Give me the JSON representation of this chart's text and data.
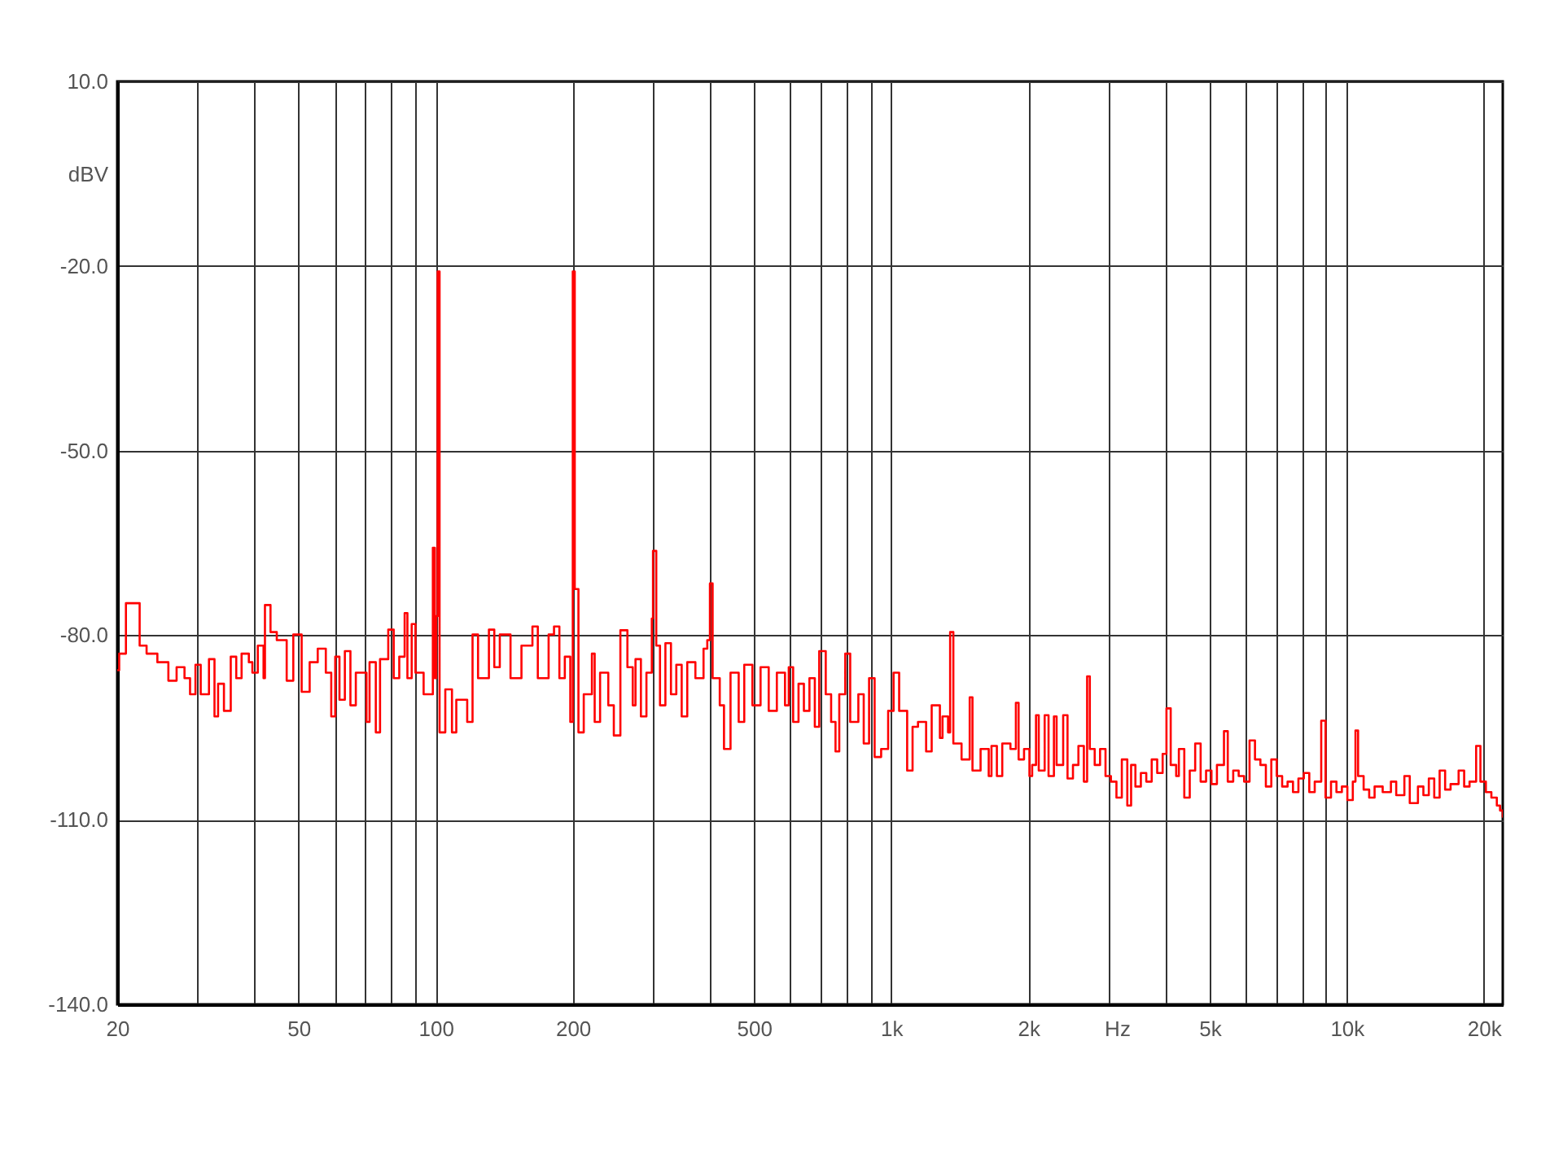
{
  "chart_data": {
    "type": "step",
    "xlabel": "Hz",
    "ylabel": "dBV",
    "log": "x",
    "grid": true,
    "xlim": [
      20,
      22000
    ],
    "ylim": [
      -140,
      10
    ],
    "xticks": [
      20,
      {
        "value": 30,
        "label": null
      },
      {
        "value": 40,
        "label": null
      },
      50,
      {
        "value": 60,
        "label": null
      },
      {
        "value": 70,
        "label": null
      },
      {
        "value": 80,
        "label": null
      },
      {
        "value": 90,
        "label": null
      },
      100,
      200,
      {
        "value": 300,
        "label": null
      },
      {
        "value": 400,
        "label": null
      },
      500,
      {
        "value": 600,
        "label": null
      },
      {
        "value": 700,
        "label": null
      },
      {
        "value": 800,
        "label": null
      },
      {
        "value": 900,
        "label": null
      },
      {
        "value": 1000,
        "label": "1k"
      },
      {
        "value": 2000,
        "label": "2k"
      },
      {
        "value": 3000,
        "label": null
      },
      {
        "value": 4000,
        "label": null
      },
      {
        "value": 5000,
        "label": "5k"
      },
      {
        "value": 6000,
        "label": null
      },
      {
        "value": 7000,
        "label": null
      },
      {
        "value": 8000,
        "label": null
      },
      {
        "value": 9000,
        "label": null
      },
      {
        "value": 10000,
        "label": "10k"
      },
      {
        "value": 20000,
        "label": "20k"
      }
    ],
    "yticks": [
      {
        "value": 10,
        "label": "10.0"
      },
      {
        "value": -20,
        "label": "-20.0"
      },
      {
        "value": -50,
        "label": "-50.0"
      },
      {
        "value": -80,
        "label": "-80.0"
      },
      {
        "value": -110,
        "label": "-110.0"
      },
      {
        "value": -140,
        "label": "-140.0"
      }
    ],
    "x": [
      20,
      20.2,
      20.9,
      22.4,
      23.2,
      24.5,
      25.9,
      27.0,
      28.1,
      28.9,
      29.7,
      30.5,
      31.8,
      32.7,
      33.3,
      34.3,
      35.5,
      36.5,
      37.5,
      38.9,
      39.6,
      40.7,
      41.9,
      42.2,
      43.4,
      44.8,
      47.1,
      48.7,
      50.8,
      52.9,
      55.1,
      57.4,
      59.0,
      60.2,
      61.5,
      63.2,
      65.0,
      66.8,
      70.5,
      71.6,
      73.9,
      75.5,
      78.7,
      80.9,
      83.2,
      85.5,
      86.7,
      88.6,
      90.3,
      94.1,
      98.6,
      99.6,
      100.3,
      101,
      102,
      105,
      108.6,
      111,
      117.3,
      120.5,
      123.9,
      130.9,
      134.5,
      138.3,
      146,
      154.3,
      163.1,
      167.6,
      177,
      181.9,
      186.9,
      192.1,
      197.5,
      200,
      202,
      205.8,
      211.4,
      220.3,
      223.4,
      229.6,
      239.3,
      246.1,
      254.4,
      263.6,
      270.8,
      274.6,
      282.2,
      290.2,
      298.2,
      300,
      305,
      310.8,
      319.4,
      328.5,
      337.5,
      346.8,
      356.7,
      371.7,
      387.3,
      394.7,
      400,
      405.5,
      420.4,
      429.5,
      443.9,
      462.6,
      475.8,
      495.8,
      516.7,
      538.4,
      561,
      584.6,
      595.8,
      609.2,
      626,
      643.2,
      661.5,
      679.7,
      695,
      718.3,
      738.1,
      754.7,
      769.1,
      792.8,
      812.8,
      847,
      870.3,
      894.2,
      919.6,
      950.4,
      984.7,
      1012,
      1041,
      1084,
      1114,
      1145,
      1193,
      1227,
      1279,
      1296,
      1333,
      1347,
      1369,
      1427,
      1487,
      1508,
      1571,
      1637,
      1660,
      1706,
      1753,
      1827,
      1878,
      1904,
      1957,
      2011,
      2039,
      2079,
      2108,
      2172,
      2215,
      2276,
      2307,
      2385,
      2438,
      2506,
      2576,
      2648,
      2692,
      2729,
      2797,
      2874,
      2954,
      3036,
      3122,
      3208,
      3298,
      3362,
      3436,
      3532,
      3630,
      3731,
      3836,
      3943,
      4020,
      4107,
      4222,
      4280,
      4399,
      4522,
      4648,
      4778,
      4911,
      5047,
      5188,
      5376,
      5480,
      5633,
      5791,
      5952,
      6118,
      6288,
      6463,
      6644,
      6829,
      7018,
      7214,
      7414,
      7620,
      7832,
      8050,
      8274,
      8505,
      8789,
      8983,
      9234,
      9491,
      9756,
      10030,
      10310,
      10450,
      10590,
      10890,
      11200,
      11510,
      11990,
      12500,
      12840,
      13380,
      13750,
      14330,
      14730,
      15140,
      15560,
      15990,
      16440,
      16900,
      17600,
      18100,
      18600,
      19230,
      19650,
      20200,
      20770,
      21350,
      21700,
      22000
    ],
    "series": [
      {
        "color": "#ff0000",
        "values": [
          -85.7,
          -83.0,
          -74.8,
          -81.7,
          -83.0,
          -84.4,
          -87.4,
          -85.2,
          -87.0,
          -89.6,
          -84.8,
          -89.6,
          -83.9,
          -93.2,
          -87.9,
          -92.3,
          -83.5,
          -87.0,
          -83.0,
          -84.4,
          -86.1,
          -81.7,
          -87.0,
          -75.1,
          -79.5,
          -80.8,
          -87.4,
          -79.9,
          -89.2,
          -84.4,
          -82.2,
          -86.1,
          -93.2,
          -83.5,
          -90.5,
          -82.6,
          -91.4,
          -86.1,
          -94.1,
          -84.4,
          -95.8,
          -83.9,
          -79.1,
          -87.0,
          -83.5,
          -76.4,
          -87.0,
          -78.2,
          -86.1,
          -89.6,
          -65.8,
          -87.0,
          -76.9,
          -20.9,
          -95.8,
          -88.8,
          -95.8,
          -90.5,
          -94.1,
          -79.9,
          -87.0,
          -79.1,
          -85.2,
          -79.9,
          -87.0,
          -81.7,
          -78.6,
          -87.0,
          -79.9,
          -78.6,
          -87.0,
          -83.5,
          -94.1,
          -20.9,
          -72.5,
          -95.8,
          -89.6,
          -83.0,
          -94.1,
          -86.1,
          -91.4,
          -96.3,
          -79.2,
          -85.2,
          -91.4,
          -83.9,
          -93.2,
          -86.1,
          -77.3,
          -66.3,
          -81.7,
          -91.4,
          -81.3,
          -89.6,
          -84.8,
          -93.2,
          -84.4,
          -87.0,
          -82.2,
          -80.8,
          -71.6,
          -87.0,
          -91.4,
          -98.5,
          -86.1,
          -94.1,
          -84.8,
          -91.4,
          -85.2,
          -92.3,
          -86.1,
          -91.4,
          -85.2,
          -94.1,
          -87.9,
          -92.3,
          -87.0,
          -94.9,
          -82.6,
          -89.6,
          -94.1,
          -98.9,
          -89.6,
          -83.0,
          -94.1,
          -89.6,
          -97.6,
          -87.0,
          -99.8,
          -98.5,
          -92.3,
          -86.1,
          -92.3,
          -102.0,
          -94.9,
          -94.1,
          -98.9,
          -91.4,
          -96.7,
          -93.2,
          -95.8,
          -79.5,
          -97.6,
          -100.2,
          -90.1,
          -102.0,
          -98.5,
          -102.9,
          -98.0,
          -102.9,
          -97.6,
          -98.5,
          -91.0,
          -100.2,
          -98.5,
          -102.9,
          -101.1,
          -93.0,
          -102.0,
          -93.0,
          -102.9,
          -93.2,
          -101.1,
          -93.0,
          -103.3,
          -101.1,
          -98.0,
          -103.8,
          -86.7,
          -98.5,
          -101.1,
          -98.5,
          -102.9,
          -103.8,
          -106.4,
          -100.2,
          -107.7,
          -101.1,
          -104.6,
          -102.4,
          -103.8,
          -100.2,
          -102.4,
          -99.3,
          -91.9,
          -101.1,
          -102.9,
          -98.5,
          -106.4,
          -102.0,
          -97.6,
          -103.8,
          -102.0,
          -104.2,
          -101.1,
          -95.6,
          -103.8,
          -102.0,
          -102.9,
          -103.8,
          -97.1,
          -100.2,
          -101.1,
          -104.6,
          -100.2,
          -102.9,
          -104.6,
          -103.8,
          -105.5,
          -103.3,
          -102.4,
          -105.5,
          -103.8,
          -93.9,
          -106.4,
          -103.8,
          -105.5,
          -104.6,
          -106.8,
          -103.8,
          -95.5,
          -102.9,
          -105.1,
          -106.4,
          -104.6,
          -105.5,
          -103.8,
          -106.0,
          -102.9,
          -107.3,
          -104.6,
          -106.0,
          -103.3,
          -106.4,
          -102.0,
          -105.1,
          -104.2,
          -102.0,
          -104.6,
          -103.8,
          -98.0,
          -103.8,
          -105.5,
          -106.4,
          -107.7,
          -108.5,
          -109.5
        ]
      }
    ]
  }
}
